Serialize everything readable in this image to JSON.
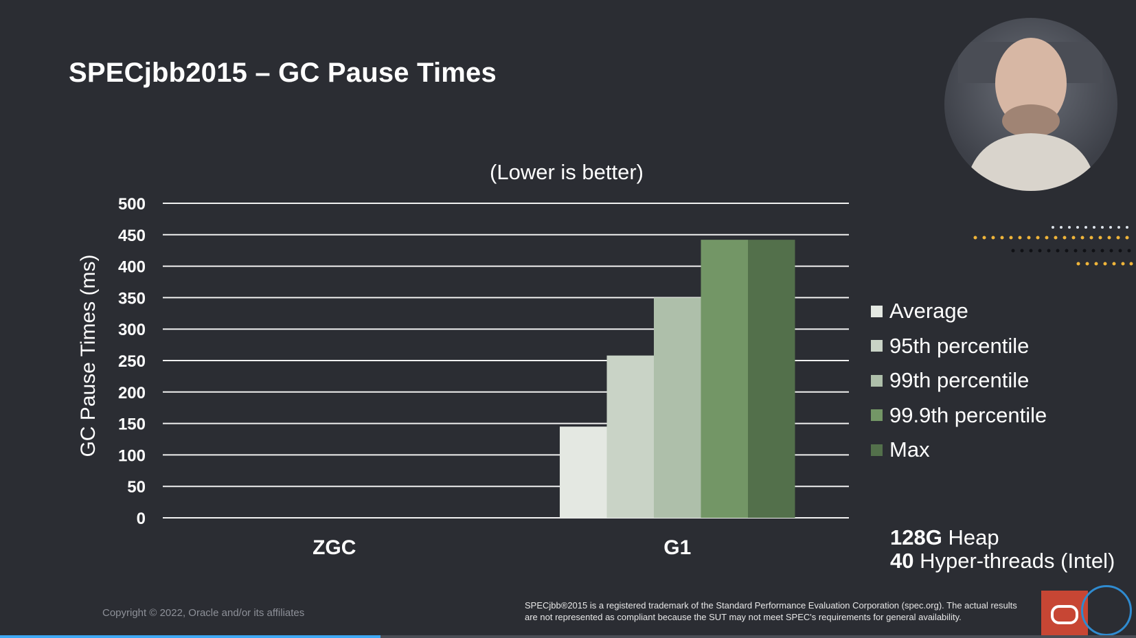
{
  "slide": {
    "title": "SPECjbb2015 – GC Pause Times",
    "copyright": "Copyright © 2022, Oracle and/or its affiliates",
    "disclaimer": "SPECjbb®2015 is a registered trademark of the Standard Performance Evaluation Corporation (spec.org). The actual results are not represented as compliant because the SUT may not meet SPEC's requirements for general availability.",
    "heap_value": "128G",
    "heap_label": " Heap",
    "threads_value": "40",
    "threads_label": " Hyper-threads (Intel)"
  },
  "video_progress": 0.335,
  "chart_data": {
    "type": "bar",
    "title": "(Lower is better)",
    "xlabel": "",
    "ylabel": "GC Pause Times (ms)",
    "ylim": [
      0,
      500
    ],
    "yticks": [
      0,
      50,
      100,
      150,
      200,
      250,
      300,
      350,
      400,
      450,
      500
    ],
    "grid": true,
    "legend_position": "right",
    "categories": [
      "ZGC",
      "G1"
    ],
    "series": [
      {
        "name": "Average",
        "color": "#e4e8e2",
        "values": [
          0,
          145
        ]
      },
      {
        "name": "95th percentile",
        "color": "#c9d3c6",
        "values": [
          0,
          258
        ]
      },
      {
        "name": "99th percentile",
        "color": "#aebfaa",
        "values": [
          0,
          350
        ]
      },
      {
        "name": "99.9th percentile",
        "color": "#739666",
        "values": [
          0,
          442
        ]
      },
      {
        "name": "Max",
        "color": "#53704b",
        "values": [
          0,
          442
        ]
      }
    ]
  }
}
